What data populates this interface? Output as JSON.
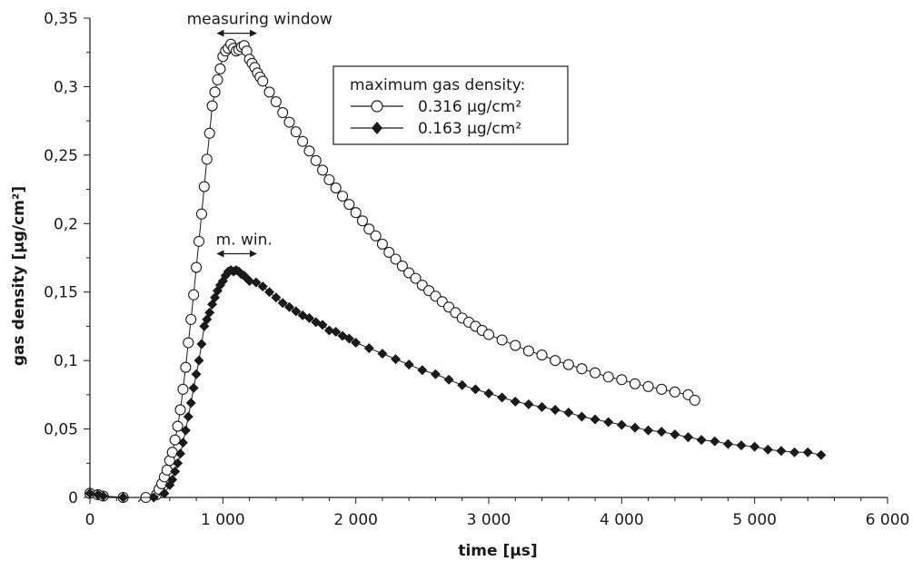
{
  "chart_data": {
    "type": "scatter",
    "xlabel": "time [µs]",
    "ylabel": "gas density [µg/cm²]",
    "xlim": [
      0,
      6000
    ],
    "ylim": [
      0,
      0.35
    ],
    "x_ticks": [
      0,
      1000,
      2000,
      3000,
      4000,
      5000,
      6000
    ],
    "x_tick_labels": [
      "0",
      "1 000",
      "2 000",
      "3 000",
      "4 000",
      "5 000",
      "6 000"
    ],
    "y_ticks": [
      0,
      0.05,
      0.1,
      0.15,
      0.2,
      0.25,
      0.3,
      0.35
    ],
    "y_tick_labels": [
      "0",
      "0,05",
      "0,1",
      "0,15",
      "0,2",
      "0,25",
      "0,3",
      "0,35"
    ],
    "x_minor_tick_step": 200,
    "y_minor_tick_step": 0.025,
    "grid": false,
    "axis_break": {
      "at_x_range": [
        200,
        320
      ],
      "axis": "x"
    },
    "legend": {
      "title": "maximum gas density:",
      "position": "top-right",
      "entries": [
        "0.316 µg/cm²",
        "0.163 µg/cm²"
      ]
    },
    "annotations": [
      {
        "text": "measuring window",
        "x_range": [
          960,
          1250
        ],
        "y": 0.339,
        "series": "0.316 µg/cm²"
      },
      {
        "text": "m. win.",
        "x_range": [
          960,
          1250
        ],
        "y": 0.178,
        "series": "0.163 µg/cm²"
      }
    ],
    "series": [
      {
        "name": "0.316 µg/cm²",
        "marker": "circle-open",
        "points": [
          [
            0,
            0.003
          ],
          [
            60,
            0.002
          ],
          [
            100,
            0.001
          ],
          [
            250,
            0.0
          ],
          [
            420,
            0.0
          ],
          [
            500,
            0.002
          ],
          [
            520,
            0.006
          ],
          [
            540,
            0.01
          ],
          [
            560,
            0.015
          ],
          [
            580,
            0.02
          ],
          [
            600,
            0.027
          ],
          [
            620,
            0.033
          ],
          [
            640,
            0.042
          ],
          [
            660,
            0.052
          ],
          [
            680,
            0.064
          ],
          [
            700,
            0.079
          ],
          [
            720,
            0.095
          ],
          [
            740,
            0.113
          ],
          [
            760,
            0.13
          ],
          [
            780,
            0.148
          ],
          [
            800,
            0.168
          ],
          [
            820,
            0.187
          ],
          [
            840,
            0.207
          ],
          [
            860,
            0.227
          ],
          [
            880,
            0.247
          ],
          [
            900,
            0.266
          ],
          [
            920,
            0.286
          ],
          [
            940,
            0.296
          ],
          [
            960,
            0.305
          ],
          [
            980,
            0.313
          ],
          [
            1000,
            0.322
          ],
          [
            1020,
            0.326
          ],
          [
            1040,
            0.328
          ],
          [
            1060,
            0.331
          ],
          [
            1080,
            0.328
          ],
          [
            1100,
            0.326
          ],
          [
            1120,
            0.327
          ],
          [
            1140,
            0.329
          ],
          [
            1160,
            0.33
          ],
          [
            1180,
            0.326
          ],
          [
            1200,
            0.32
          ],
          [
            1220,
            0.317
          ],
          [
            1240,
            0.314
          ],
          [
            1260,
            0.31
          ],
          [
            1280,
            0.307
          ],
          [
            1300,
            0.304
          ],
          [
            1350,
            0.296
          ],
          [
            1400,
            0.289
          ],
          [
            1450,
            0.281
          ],
          [
            1500,
            0.274
          ],
          [
            1550,
            0.267
          ],
          [
            1600,
            0.26
          ],
          [
            1650,
            0.253
          ],
          [
            1700,
            0.246
          ],
          [
            1750,
            0.239
          ],
          [
            1800,
            0.232
          ],
          [
            1850,
            0.226
          ],
          [
            1900,
            0.22
          ],
          [
            1950,
            0.214
          ],
          [
            2000,
            0.208
          ],
          [
            2050,
            0.202
          ],
          [
            2100,
            0.196
          ],
          [
            2150,
            0.191
          ],
          [
            2200,
            0.185
          ],
          [
            2250,
            0.179
          ],
          [
            2300,
            0.174
          ],
          [
            2350,
            0.169
          ],
          [
            2400,
            0.164
          ],
          [
            2450,
            0.16
          ],
          [
            2500,
            0.155
          ],
          [
            2550,
            0.151
          ],
          [
            2600,
            0.147
          ],
          [
            2650,
            0.143
          ],
          [
            2700,
            0.139
          ],
          [
            2750,
            0.135
          ],
          [
            2800,
            0.131
          ],
          [
            2850,
            0.128
          ],
          [
            2900,
            0.125
          ],
          [
            2950,
            0.122
          ],
          [
            3000,
            0.119
          ],
          [
            3100,
            0.115
          ],
          [
            3200,
            0.111
          ],
          [
            3300,
            0.107
          ],
          [
            3400,
            0.104
          ],
          [
            3500,
            0.1
          ],
          [
            3600,
            0.097
          ],
          [
            3700,
            0.094
          ],
          [
            3800,
            0.091
          ],
          [
            3900,
            0.088
          ],
          [
            4000,
            0.086
          ],
          [
            4100,
            0.083
          ],
          [
            4200,
            0.081
          ],
          [
            4300,
            0.079
          ],
          [
            4400,
            0.077
          ],
          [
            4500,
            0.075
          ],
          [
            4550,
            0.071
          ]
        ]
      },
      {
        "name": "0.163 µg/cm²",
        "marker": "diamond-filled",
        "points": [
          [
            0,
            0.003
          ],
          [
            60,
            0.002
          ],
          [
            100,
            0.001
          ],
          [
            250,
            0.0
          ],
          [
            480,
            0.0
          ],
          [
            560,
            0.003
          ],
          [
            600,
            0.009
          ],
          [
            620,
            0.013
          ],
          [
            640,
            0.019
          ],
          [
            660,
            0.025
          ],
          [
            680,
            0.032
          ],
          [
            700,
            0.04
          ],
          [
            720,
            0.049
          ],
          [
            740,
            0.059
          ],
          [
            760,
            0.069
          ],
          [
            780,
            0.08
          ],
          [
            800,
            0.09
          ],
          [
            820,
            0.1
          ],
          [
            840,
            0.112
          ],
          [
            860,
            0.125
          ],
          [
            880,
            0.13
          ],
          [
            900,
            0.135
          ],
          [
            920,
            0.141
          ],
          [
            940,
            0.146
          ],
          [
            960,
            0.151
          ],
          [
            980,
            0.155
          ],
          [
            1000,
            0.158
          ],
          [
            1020,
            0.162
          ],
          [
            1040,
            0.165
          ],
          [
            1060,
            0.166
          ],
          [
            1080,
            0.165
          ],
          [
            1100,
            0.166
          ],
          [
            1120,
            0.165
          ],
          [
            1140,
            0.163
          ],
          [
            1160,
            0.162
          ],
          [
            1180,
            0.16
          ],
          [
            1200,
            0.158
          ],
          [
            1250,
            0.157
          ],
          [
            1300,
            0.154
          ],
          [
            1350,
            0.15
          ],
          [
            1400,
            0.146
          ],
          [
            1450,
            0.142
          ],
          [
            1500,
            0.139
          ],
          [
            1550,
            0.136
          ],
          [
            1600,
            0.133
          ],
          [
            1650,
            0.131
          ],
          [
            1700,
            0.128
          ],
          [
            1750,
            0.126
          ],
          [
            1800,
            0.122
          ],
          [
            1850,
            0.121
          ],
          [
            1900,
            0.118
          ],
          [
            1950,
            0.116
          ],
          [
            2000,
            0.113
          ],
          [
            2100,
            0.109
          ],
          [
            2200,
            0.105
          ],
          [
            2300,
            0.101
          ],
          [
            2400,
            0.097
          ],
          [
            2500,
            0.093
          ],
          [
            2600,
            0.09
          ],
          [
            2700,
            0.086
          ],
          [
            2800,
            0.082
          ],
          [
            2900,
            0.079
          ],
          [
            3000,
            0.076
          ],
          [
            3100,
            0.073
          ],
          [
            3200,
            0.07
          ],
          [
            3300,
            0.068
          ],
          [
            3400,
            0.066
          ],
          [
            3500,
            0.064
          ],
          [
            3600,
            0.062
          ],
          [
            3700,
            0.059
          ],
          [
            3800,
            0.057
          ],
          [
            3900,
            0.055
          ],
          [
            4000,
            0.053
          ],
          [
            4100,
            0.051
          ],
          [
            4200,
            0.049
          ],
          [
            4300,
            0.048
          ],
          [
            4400,
            0.046
          ],
          [
            4500,
            0.044
          ],
          [
            4600,
            0.042
          ],
          [
            4700,
            0.041
          ],
          [
            4800,
            0.039
          ],
          [
            4900,
            0.038
          ],
          [
            5000,
            0.037
          ],
          [
            5100,
            0.035
          ],
          [
            5200,
            0.034
          ],
          [
            5300,
            0.033
          ],
          [
            5400,
            0.033
          ],
          [
            5500,
            0.031
          ]
        ]
      }
    ]
  }
}
